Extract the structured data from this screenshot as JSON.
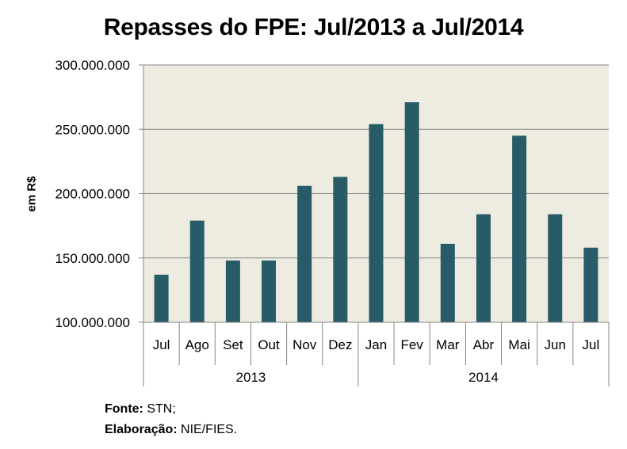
{
  "chart_data": {
    "type": "bar",
    "title": "Repasses do FPE: Jul/2013 a Jul/2014",
    "ylabel": "em R$",
    "categories": [
      "Jul",
      "Ago",
      "Set",
      "Out",
      "Nov",
      "Dez",
      "Jan",
      "Fev",
      "Mar",
      "Abr",
      "Mai",
      "Jun",
      "Jul"
    ],
    "groups": [
      {
        "label": "2013",
        "count": 6
      },
      {
        "label": "2014",
        "count": 7
      }
    ],
    "values": [
      137000000,
      179000000,
      148000000,
      148000000,
      206000000,
      213000000,
      254000000,
      271000000,
      161000000,
      184000000,
      245000000,
      184000000,
      158000000
    ],
    "ylim": [
      100000000,
      300000000
    ],
    "yticks": [
      100000000,
      150000000,
      200000000,
      250000000,
      300000000
    ],
    "ytick_labels": [
      "100.000.000",
      "150.000.000",
      "200.000.000",
      "250.000.000",
      "300.000.000"
    ],
    "grid": true,
    "legend": "none",
    "colors": {
      "bar": "#265B67",
      "plot_bg": "#EEECE1",
      "grid": "#868686"
    }
  },
  "footer": {
    "fonte_label": "Fonte:",
    "fonte_value": "STN;",
    "elab_label": "Elaboração:",
    "elab_value": "NIE/FIES."
  }
}
